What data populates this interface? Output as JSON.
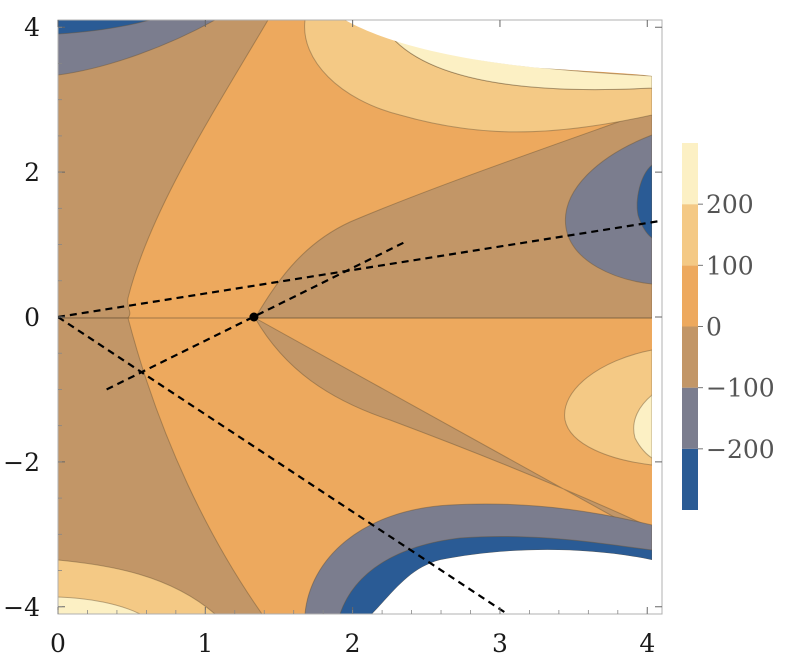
{
  "chart_data": {
    "type": "contour",
    "title": "",
    "xlabel": "",
    "ylabel": "",
    "xlim": [
      0,
      4.1
    ],
    "ylim": [
      -4.1,
      4.1
    ],
    "x_ticks": [
      0,
      1,
      2,
      3,
      4
    ],
    "y_ticks": [
      -4,
      -2,
      0,
      2,
      4
    ],
    "x_tick_labels": [
      "0",
      "1",
      "2",
      "3",
      "4"
    ],
    "y_tick_labels": [
      "−4",
      "−2",
      "0",
      "2",
      "4"
    ],
    "legend_placement": "right",
    "levels": [
      {
        "range": [
          -300,
          -200
        ],
        "color": "#2a5b95"
      },
      {
        "range": [
          -200,
          -100
        ],
        "color": "#7b7d8e"
      },
      {
        "range": [
          -100,
          0
        ],
        "color": "#c29667"
      },
      {
        "range": [
          0,
          100
        ],
        "color": "#eda95e"
      },
      {
        "range": [
          100,
          200
        ],
        "color": "#f4c985"
      },
      {
        "range": [
          200,
          300
        ],
        "color": "#fcf0c4"
      }
    ],
    "legend_ticks": [
      200,
      100,
      0,
      -100,
      -200
    ],
    "legend_tick_labels": [
      "200",
      "100",
      "0",
      "−100",
      "−200"
    ],
    "point": {
      "x": 1.33,
      "y": 0
    },
    "dashed_lines": [
      {
        "x": [
          0.33,
          2.35
        ],
        "y": [
          -1.0,
          1.03
        ]
      },
      {
        "x": [
          0,
          4.1
        ],
        "y": [
          0,
          1.33
        ]
      },
      {
        "x": [
          0,
          3.05
        ],
        "y": [
          0,
          -4.1
        ]
      }
    ]
  }
}
